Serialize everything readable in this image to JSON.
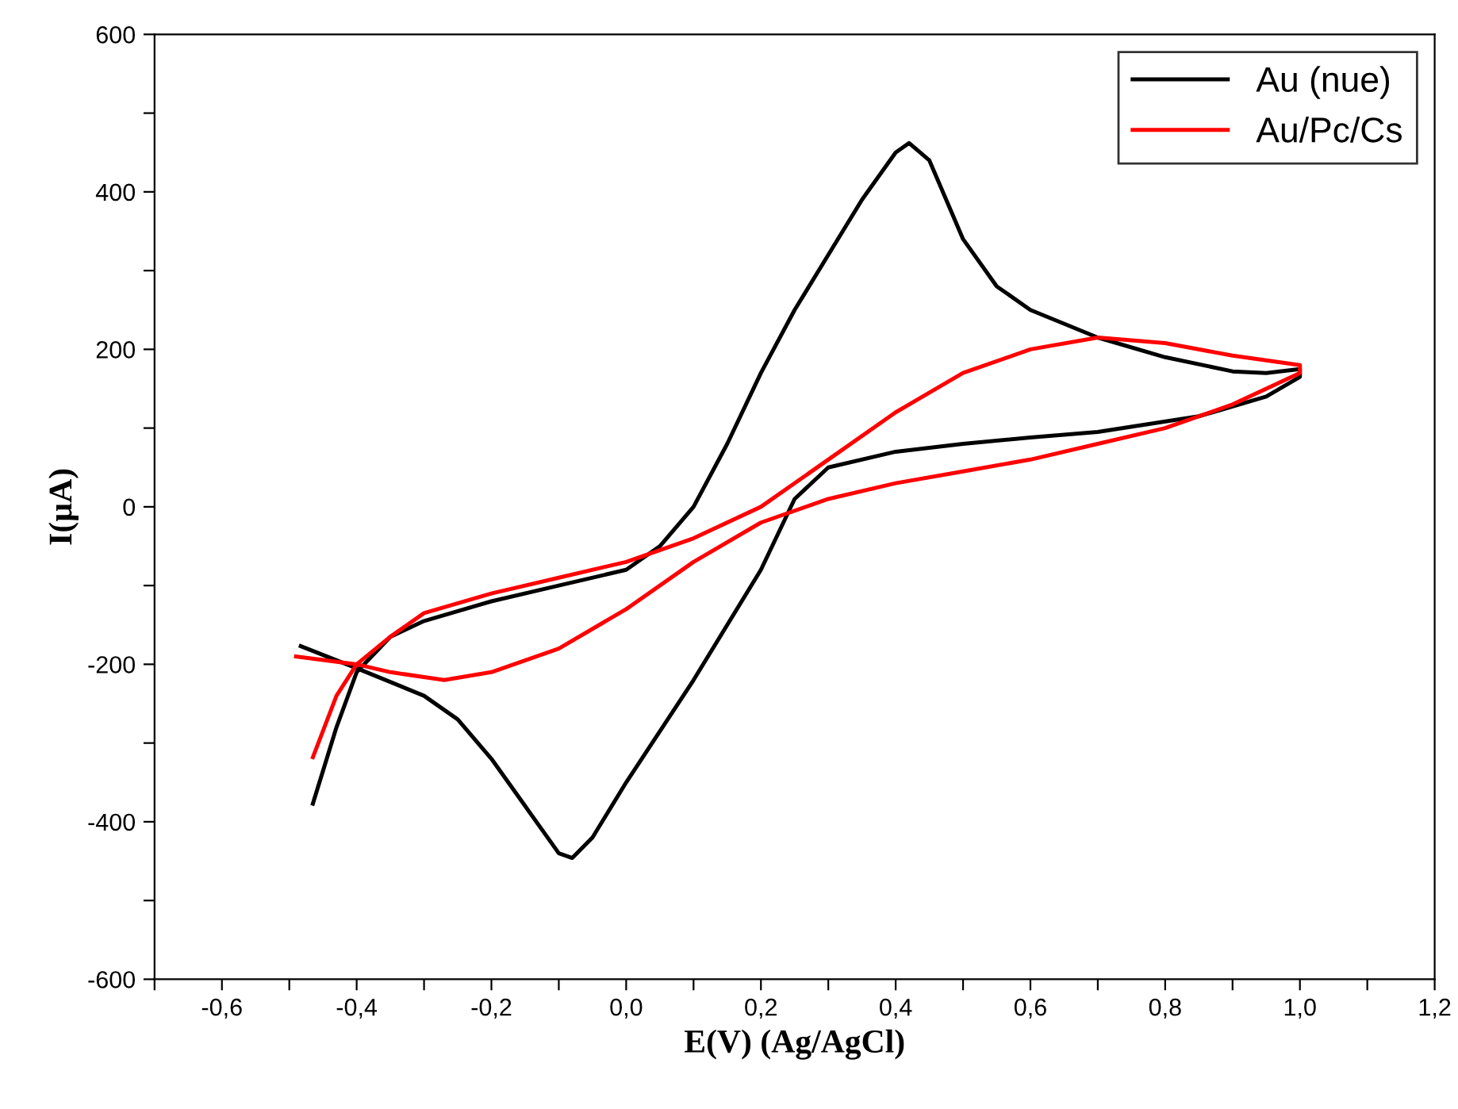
{
  "chart_data": {
    "type": "line",
    "xlabel": "E(V) (Ag/AgCl)",
    "ylabel": "I(µA)",
    "xlim": [
      -0.7,
      1.2
    ],
    "ylim": [
      -600,
      600
    ],
    "xticks": [
      {
        "value": -0.7,
        "label": null
      },
      {
        "value": -0.6,
        "label": "-0,6"
      },
      {
        "value": -0.5,
        "label": null
      },
      {
        "value": -0.4,
        "label": "-0,4"
      },
      {
        "value": -0.3,
        "label": null
      },
      {
        "value": -0.2,
        "label": "-0,2"
      },
      {
        "value": -0.1,
        "label": null
      },
      {
        "value": 0.0,
        "label": "0,0"
      },
      {
        "value": 0.1,
        "label": null
      },
      {
        "value": 0.2,
        "label": "0,2"
      },
      {
        "value": 0.3,
        "label": null
      },
      {
        "value": 0.4,
        "label": "0,4"
      },
      {
        "value": 0.5,
        "label": null
      },
      {
        "value": 0.6,
        "label": "0,6"
      },
      {
        "value": 0.7,
        "label": null
      },
      {
        "value": 0.8,
        "label": "0,8"
      },
      {
        "value": 0.9,
        "label": null
      },
      {
        "value": 1.0,
        "label": "1,0"
      },
      {
        "value": 1.1,
        "label": null
      },
      {
        "value": 1.2,
        "label": "1,2"
      }
    ],
    "yticks": [
      -600,
      {
        "value": -500,
        "label": null
      },
      -400,
      {
        "value": -300,
        "label": null
      },
      -200,
      {
        "value": -100,
        "label": null
      },
      0,
      {
        "value": 100,
        "label": null
      },
      200,
      {
        "value": 300,
        "label": null
      },
      400,
      {
        "value": 500,
        "label": null
      },
      600
    ],
    "grid": false,
    "legend": "top right",
    "marker": "none",
    "line_style": "solid",
    "series": [
      {
        "name": "Au (nue)",
        "color": "#000000",
        "x": [
          -0.465,
          -0.43,
          -0.4,
          -0.35,
          -0.3,
          -0.2,
          -0.1,
          0.0,
          0.05,
          0.1,
          0.15,
          0.2,
          0.25,
          0.3,
          0.35,
          0.4,
          0.42,
          0.45,
          0.5,
          0.55,
          0.6,
          0.7,
          0.8,
          0.9,
          0.95,
          1.0,
          1.0,
          0.95,
          0.85,
          0.7,
          0.6,
          0.5,
          0.4,
          0.3,
          0.25,
          0.2,
          0.1,
          0.0,
          -0.05,
          -0.08,
          -0.1,
          -0.15,
          -0.2,
          -0.25,
          -0.3,
          -0.4,
          -0.483
        ],
        "values": [
          -377,
          -280,
          -210,
          -165,
          -145,
          -120,
          -100,
          -80,
          -50,
          0,
          80,
          170,
          250,
          320,
          390,
          450,
          462,
          440,
          340,
          280,
          250,
          215,
          190,
          172,
          170,
          175,
          165,
          140,
          115,
          95,
          88,
          80,
          70,
          50,
          10,
          -80,
          -220,
          -350,
          -420,
          -446,
          -440,
          -380,
          -320,
          -270,
          -240,
          -205,
          -177
        ]
      },
      {
        "name": "Au/Pc/Cs",
        "color": "#ff0000",
        "x": [
          -0.465,
          -0.43,
          -0.4,
          -0.35,
          -0.3,
          -0.2,
          -0.1,
          0.0,
          0.1,
          0.2,
          0.3,
          0.4,
          0.5,
          0.6,
          0.7,
          0.8,
          0.9,
          1.0,
          1.0,
          0.9,
          0.8,
          0.7,
          0.6,
          0.5,
          0.4,
          0.3,
          0.2,
          0.1,
          0.0,
          -0.1,
          -0.2,
          -0.27,
          -0.35,
          -0.4,
          -0.49
        ],
        "values": [
          -318,
          -240,
          -200,
          -165,
          -135,
          -110,
          -90,
          -70,
          -40,
          0,
          60,
          120,
          170,
          200,
          215,
          208,
          192,
          180,
          170,
          130,
          100,
          80,
          60,
          45,
          30,
          10,
          -20,
          -70,
          -130,
          -180,
          -210,
          -220,
          -210,
          -200,
          -190
        ]
      }
    ]
  }
}
